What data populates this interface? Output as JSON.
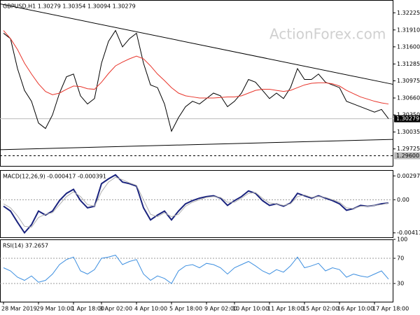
{
  "chart_data": [
    {
      "type": "line",
      "title": "GBPUSD,H1  1.30279 1.30354 1.30094 1.30279",
      "watermark": "ActionForex.com",
      "categories": [
        "28 Mar 2019",
        null,
        null,
        null,
        null,
        "29 Mar 10:00",
        null,
        null,
        null,
        null,
        "1 Apr 18:00",
        null,
        null,
        null,
        "3 Apr 02:00",
        null,
        null,
        null,
        null,
        "4 Apr 10:00",
        null,
        null,
        null,
        null,
        "5 Apr 18:00",
        null,
        null,
        null,
        null,
        "9 Apr 02:00",
        null,
        null,
        null,
        "10 Apr 10:00",
        null,
        null,
        null,
        null,
        "11 Apr 18:00",
        null,
        null,
        null,
        null,
        "15 Apr 02:00",
        null,
        null,
        null,
        null,
        "16 Apr 10:00",
        null,
        null,
        null,
        null,
        "17 Apr 18:00",
        null,
        null
      ],
      "series": [
        {
          "color": "#000000",
          "values": [
            1.3185,
            1.3175,
            1.312,
            1.308,
            1.306,
            1.302,
            1.301,
            1.3035,
            1.3075,
            1.3105,
            1.311,
            1.307,
            1.3055,
            1.3065,
            1.313,
            1.317,
            1.319,
            1.316,
            1.3175,
            1.3185,
            1.313,
            1.309,
            1.3085,
            1.3055,
            1.3005,
            1.303,
            1.305,
            1.306,
            1.3055,
            1.3065,
            1.3075,
            1.307,
            1.305,
            1.306,
            1.3075,
            1.31,
            1.3095,
            1.308,
            1.3065,
            1.3075,
            1.3065,
            1.3085,
            1.312,
            1.31,
            1.31,
            1.311,
            1.3095,
            1.309,
            1.3085,
            1.306,
            1.3055,
            1.305,
            1.3045,
            1.304,
            1.3045,
            1.3028
          ]
        },
        {
          "color": "#e8352b",
          "values": [
            1.319,
            1.3175,
            1.3155,
            1.313,
            1.311,
            1.3092,
            1.3078,
            1.3072,
            1.3075,
            1.3082,
            1.3088,
            1.3087,
            1.3083,
            1.3082,
            1.3095,
            1.3111,
            1.3125,
            1.3132,
            1.3138,
            1.3143,
            1.3138,
            1.3125,
            1.311,
            1.3098,
            1.3085,
            1.3075,
            1.307,
            1.3068,
            1.3066,
            1.3066,
            1.3066,
            1.3067,
            1.3068,
            1.3068,
            1.307,
            1.3075,
            1.308,
            1.3082,
            1.3082,
            1.308,
            1.3078,
            1.308,
            1.3085,
            1.309,
            1.3093,
            1.3094,
            1.3094,
            1.3092,
            1.3088,
            1.308,
            1.3074,
            1.3068,
            1.3064,
            1.306,
            1.3057,
            1.3055
          ]
        }
      ],
      "trendlines": [
        {
          "color": "#000000",
          "values": [
            1.3239,
            1.3091
          ]
        },
        {
          "color": "#000000",
          "values": [
            1.2971,
            1.299
          ]
        }
      ],
      "price_marker": 1.30279,
      "level": {
        "value": 1.296,
        "label": "1.29600"
      },
      "ylim": [
        1.294,
        1.3246
      ],
      "yticks": [
        1.32225,
        {
          "value": 1.3191,
          "label": "1.31910"
        },
        {
          "value": 1.316,
          "label": "1.31600"
        },
        1.31285,
        1.30975,
        {
          "value": 1.3066,
          "label": "1.30660"
        },
        {
          "value": 1.3035,
          "label": "1.30350"
        },
        1.30035,
        1.29725
      ]
    },
    {
      "type": "line",
      "title": "MACD(12,26,9) -0.000417 -0.000391",
      "series": [
        {
          "color": "#1a237e",
          "values": [
            -0.0008,
            -0.0014,
            -0.0028,
            -0.0041,
            -0.0031,
            -0.0014,
            -0.0019,
            -0.0014,
            -0.0001,
            0.0008,
            0.0013,
            -0.0001,
            -0.001,
            -0.0008,
            0.002,
            0.0026,
            0.0031,
            0.0022,
            0.002,
            0.0017,
            -0.001,
            -0.0025,
            -0.0019,
            -0.0014,
            -0.0025,
            -0.0014,
            -0.0005,
            -0.0001,
            0.0002,
            0.0004,
            0.0005,
            0.0002,
            -0.0007,
            -0.0001,
            0.0004,
            0.0011,
            0.0008,
            -0.0001,
            -0.0007,
            -0.0005,
            -0.0008,
            -0.0004,
            0.0008,
            0.0005,
            0.0002,
            0.0005,
            0.0002,
            -0.0001,
            -0.0005,
            -0.0013,
            -0.0011,
            -0.0007,
            -0.0008,
            -0.0007,
            -0.0005,
            -0.0004
          ]
        },
        {
          "color": "#b0b0b0",
          "values": [
            -0.0005,
            -0.001,
            -0.002,
            -0.0033,
            -0.0034,
            -0.0022,
            -0.0018,
            -0.0016,
            -0.0006,
            0.0004,
            0.001,
            0.0004,
            -0.0006,
            -0.0008,
            0.001,
            0.0022,
            0.0028,
            0.0025,
            0.0021,
            0.0018,
            0.0,
            -0.0018,
            -0.0021,
            -0.0016,
            -0.0021,
            -0.0018,
            -0.0008,
            -0.0003,
            0.0,
            0.0003,
            0.0004,
            0.0003,
            -0.0003,
            -0.0003,
            0.0002,
            0.0008,
            0.0009,
            0.0002,
            -0.0004,
            -0.0005,
            -0.0007,
            -0.0005,
            0.0004,
            0.0006,
            0.0003,
            0.0004,
            0.0003,
            0.0,
            -0.0003,
            -0.001,
            -0.0011,
            -0.0008,
            -0.0008,
            -0.0007,
            -0.0006,
            -0.0004
          ]
        }
      ],
      "ylim": [
        -0.00475,
        0.00369
      ],
      "yticks": [
        0.002971,
        {
          "value": 0,
          "label": "0.00"
        },
        -0.004116
      ]
    },
    {
      "type": "line",
      "title": "RSI(14) 37.2657",
      "series": [
        {
          "color": "#3d8fe0",
          "values": [
            55,
            50,
            40,
            35,
            42,
            32,
            35,
            45,
            60,
            68,
            72,
            50,
            45,
            52,
            70,
            72,
            75,
            60,
            65,
            68,
            45,
            35,
            42,
            38,
            30,
            50,
            58,
            60,
            55,
            62,
            60,
            55,
            45,
            55,
            60,
            65,
            58,
            50,
            45,
            52,
            48,
            58,
            72,
            55,
            58,
            62,
            50,
            55,
            52,
            40,
            45,
            42,
            40,
            45,
            50,
            37
          ]
        }
      ],
      "ylim": [
        0,
        100
      ],
      "yticks": [
        100,
        70,
        30
      ]
    }
  ]
}
